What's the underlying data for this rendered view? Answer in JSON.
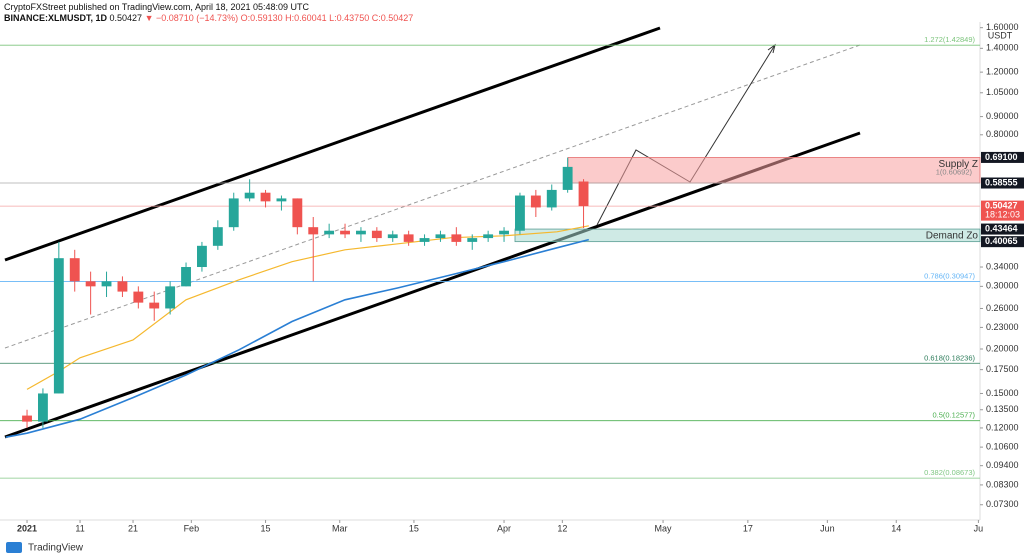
{
  "header": {
    "publisher": "CryptoFXStreet published on TradingView.com, April 18, 2021 05:48:09 UTC",
    "symbol": "BINANCE:XLMUSDT, 1D",
    "last": "0.50427",
    "change": "▼ −0.08710 (−14.73%)",
    "ohlc": "O:0.59130 H:0.60041 L:0.43750 C:0.50427"
  },
  "footer": {
    "brand": "TradingView"
  },
  "chart_data": {
    "type": "candlestick",
    "log_scale": true,
    "currency": "USDT",
    "up_color": "#26a69a",
    "down_color": "#ef5350",
    "x": [
      0,
      3,
      6,
      9,
      12,
      15,
      18,
      21,
      24,
      27,
      30,
      33,
      36,
      39,
      42,
      45,
      48,
      51,
      54,
      57,
      60,
      63,
      66,
      69,
      72,
      75,
      78,
      81,
      84,
      87,
      90,
      93,
      96,
      99,
      102,
      105
    ],
    "open": [
      0.13,
      0.125,
      0.15,
      0.36,
      0.31,
      0.3,
      0.31,
      0.29,
      0.27,
      0.26,
      0.3,
      0.34,
      0.39,
      0.44,
      0.53,
      0.55,
      0.52,
      0.53,
      0.44,
      0.42,
      0.43,
      0.42,
      0.43,
      0.41,
      0.42,
      0.4,
      0.41,
      0.42,
      0.4,
      0.41,
      0.42,
      0.43,
      0.54,
      0.5,
      0.56,
      0.5913
    ],
    "high": [
      0.135,
      0.155,
      0.4,
      0.38,
      0.33,
      0.33,
      0.32,
      0.3,
      0.29,
      0.31,
      0.35,
      0.4,
      0.46,
      0.55,
      0.6,
      0.56,
      0.54,
      0.53,
      0.47,
      0.45,
      0.45,
      0.44,
      0.44,
      0.43,
      0.43,
      0.42,
      0.43,
      0.44,
      0.42,
      0.43,
      0.44,
      0.55,
      0.56,
      0.58,
      0.69,
      0.60041
    ],
    "low": [
      0.12,
      0.12,
      0.15,
      0.29,
      0.25,
      0.28,
      0.28,
      0.26,
      0.24,
      0.25,
      0.3,
      0.33,
      0.38,
      0.43,
      0.52,
      0.5,
      0.49,
      0.42,
      0.31,
      0.41,
      0.41,
      0.4,
      0.4,
      0.4,
      0.39,
      0.39,
      0.4,
      0.39,
      0.38,
      0.4,
      0.4,
      0.42,
      0.47,
      0.49,
      0.55,
      0.4375
    ],
    "close": [
      0.125,
      0.15,
      0.36,
      0.31,
      0.3,
      0.31,
      0.29,
      0.27,
      0.26,
      0.3,
      0.34,
      0.39,
      0.44,
      0.53,
      0.55,
      0.52,
      0.53,
      0.44,
      0.42,
      0.43,
      0.42,
      0.43,
      0.41,
      0.42,
      0.4,
      0.41,
      0.42,
      0.4,
      0.41,
      0.42,
      0.43,
      0.54,
      0.5,
      0.56,
      0.65,
      0.50427
    ],
    "series": [
      {
        "color": "#f5b82e",
        "x": [
          0,
          6,
          10,
          20,
          30,
          40,
          50,
          60,
          70,
          80,
          90,
          100,
          106
        ],
        "values": [
          0.154,
          0.173,
          0.189,
          0.212,
          0.275,
          0.313,
          0.352,
          0.38,
          0.395,
          0.411,
          0.416,
          0.427,
          0.444
        ]
      },
      {
        "color": "#2a7fd4",
        "x": [
          -4,
          0,
          10,
          20,
          30,
          40,
          50,
          60,
          70,
          80,
          90,
          100,
          106
        ],
        "values": [
          0.113,
          0.116,
          0.127,
          0.146,
          0.169,
          0.199,
          0.239,
          0.275,
          0.297,
          0.323,
          0.352,
          0.385,
          0.406
        ]
      }
    ],
    "xlim": [
      -5.1,
      179.8
    ],
    "xticks": [
      {
        "value": 0,
        "label": "2021"
      },
      {
        "value": 10,
        "label": "11"
      },
      {
        "value": 20,
        "label": "21"
      },
      {
        "value": 31,
        "label": "Feb"
      },
      {
        "value": 45,
        "label": "15"
      },
      {
        "value": 59,
        "label": "Mar"
      },
      {
        "value": 73,
        "label": "15"
      },
      {
        "value": 90,
        "label": "Apr"
      },
      {
        "value": 101,
        "label": "12"
      },
      {
        "value": 120,
        "label": "May"
      },
      {
        "value": 136,
        "label": "17"
      },
      {
        "value": 151,
        "label": "Jun"
      },
      {
        "value": 164,
        "label": "14"
      },
      {
        "value": 179.5,
        "label": "Ju"
      }
    ],
    "ylim": [
      0.067,
      1.66
    ],
    "yticks": [
      {
        "value": 1.6,
        "label": "1.60000"
      },
      {
        "value": 1.4,
        "label": "1.40000"
      },
      {
        "value": 1.2,
        "label": "1.20000"
      },
      {
        "value": 1.05,
        "label": "1.05000"
      },
      {
        "value": 0.9,
        "label": "0.90000"
      },
      {
        "value": 0.8,
        "label": "0.80000"
      },
      {
        "value": 0.34,
        "label": "0.34000"
      },
      {
        "value": 0.3,
        "label": "0.30000"
      },
      {
        "value": 0.26,
        "label": "0.26000"
      },
      {
        "value": 0.23,
        "label": "0.23000"
      },
      {
        "value": 0.2,
        "label": "0.20000"
      },
      {
        "value": 0.175,
        "label": "0.17500"
      },
      {
        "value": 0.15,
        "label": "0.15000"
      },
      {
        "value": 0.135,
        "label": "0.13500"
      },
      {
        "value": 0.12,
        "label": "0.12000"
      },
      {
        "value": 0.106,
        "label": "0.10600"
      },
      {
        "value": 0.094,
        "label": "0.09400"
      },
      {
        "value": 0.083,
        "label": "0.08300"
      },
      {
        "value": 0.073,
        "label": "0.07300"
      }
    ],
    "price_labels": [
      {
        "value": 0.691,
        "label": "0.69100",
        "color": "#131722"
      },
      {
        "value": 0.58555,
        "label": "0.58555",
        "color": "#131722"
      },
      {
        "value": 0.50427,
        "label": "0.50427",
        "color": "#ef5350"
      },
      {
        "value": 0.43464,
        "label": "0.43464",
        "color": "#131722"
      },
      {
        "value": 0.40065,
        "label": "0.40065",
        "color": "#131722"
      }
    ],
    "countdown": "18:12:03",
    "zones": [
      {
        "label": "Supply Z",
        "low": 0.58555,
        "high": 0.691,
        "color": "#f7a1a1"
      },
      {
        "label": "Demand Zo",
        "low": 0.40065,
        "high": 0.43464,
        "color": "#a8d8d0"
      }
    ],
    "fib_levels": [
      {
        "value": 1.42849,
        "label": "1.272(1.42849)",
        "color": "#7cc47c"
      },
      {
        "value": 0.60692,
        "label": "1(0.60692)",
        "color": "#888888"
      },
      {
        "value": 0.30947,
        "label": "0.786(0.30947)",
        "color": "#64b5f6"
      },
      {
        "value": 0.18236,
        "label": "0.618(0.18236)",
        "color": "#2e7d5b"
      },
      {
        "value": 0.12577,
        "label": "0.5(0.12577)",
        "color": "#4caf50"
      },
      {
        "value": 0.08673,
        "label": "0.382(0.08673)",
        "color": "#81c784"
      }
    ]
  }
}
